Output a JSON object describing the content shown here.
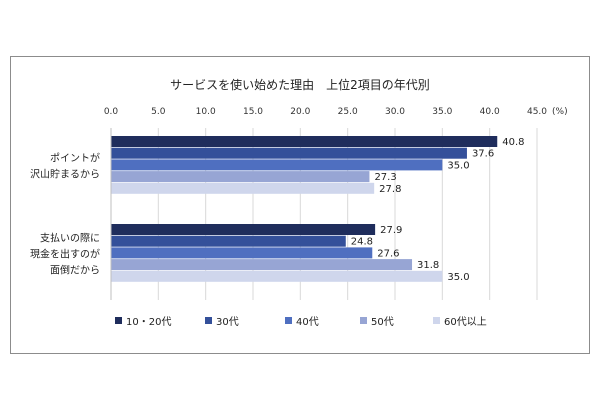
{
  "chart_data": {
    "type": "bar",
    "orientation": "horizontal",
    "title": "サービスを使い始めた理由　上位2項目の年代別",
    "unit_label": "(%)",
    "xlim": [
      0,
      45
    ],
    "ticks": [
      "0.0",
      "5.0",
      "10.0",
      "15.0",
      "20.0",
      "25.0",
      "30.0",
      "35.0",
      "40.0",
      "45.0"
    ],
    "grid": true,
    "legend_position": "bottom",
    "categories": [
      [
        "ポイントが",
        "沢山貯まるから"
      ],
      [
        "支払いの際に",
        "現金を出すのが",
        "面倒だから"
      ]
    ],
    "series": [
      {
        "name": "10・20代",
        "color": "#1f2d5c",
        "values": [
          40.8,
          27.9
        ]
      },
      {
        "name": "30代",
        "color": "#34509a",
        "values": [
          37.6,
          24.8
        ]
      },
      {
        "name": "40代",
        "color": "#4f6fc0",
        "values": [
          35.0,
          27.6
        ]
      },
      {
        "name": "50代",
        "color": "#97a5d4",
        "values": [
          27.3,
          31.8
        ]
      },
      {
        "name": "60代以上",
        "color": "#cfd6ec",
        "values": [
          27.8,
          35.0
        ]
      }
    ]
  }
}
